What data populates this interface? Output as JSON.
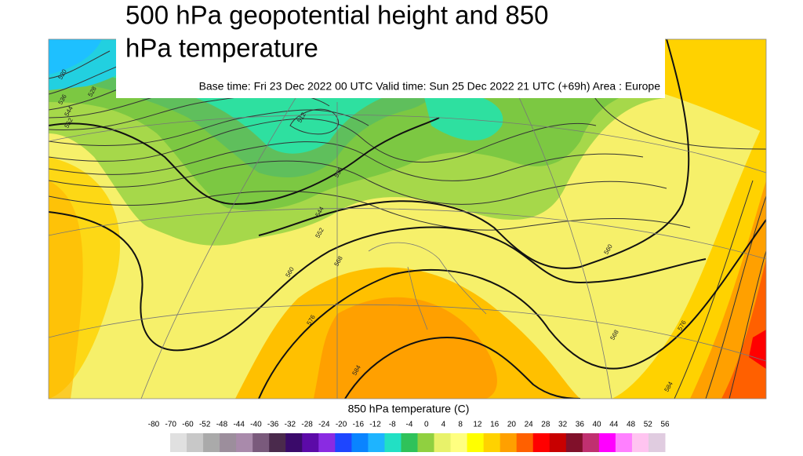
{
  "header": {
    "title_line1": "500 hPa geopotential height and 850",
    "title_line2": "hPa temperature",
    "subtitle": "Base time: Fri 23 Dec 2022 00 UTC Valid time: Sun 25 Dec 2022 21 UTC (+69h) Area : Europe"
  },
  "map": {
    "contour_labels": [
      "520",
      "528",
      "536",
      "544",
      "552",
      "512",
      "536",
      "544",
      "552",
      "560",
      "568",
      "576",
      "584",
      "560",
      "568",
      "576",
      "584"
    ]
  },
  "colorbar": {
    "label": "850 hPa temperature (C)",
    "ticks": [
      -80,
      -70,
      -60,
      -52,
      -48,
      -44,
      -40,
      -36,
      -32,
      -28,
      -24,
      -20,
      -16,
      -12,
      -8,
      -4,
      0,
      4,
      8,
      12,
      16,
      20,
      24,
      28,
      32,
      36,
      40,
      44,
      48,
      52,
      56
    ],
    "colors": [
      "#e0e0e0",
      "#c8c8c8",
      "#aaaaaa",
      "#9c8e9c",
      "#a98aab",
      "#7a5a7c",
      "#4a2a4c",
      "#3a0a6a",
      "#5c0aa8",
      "#8a2be2",
      "#1e46ff",
      "#0a84ff",
      "#1eb4ff",
      "#22e0c4",
      "#2fc25a",
      "#90d040",
      "#e8f26a",
      "#ffff80",
      "#ffff00",
      "#ffd200",
      "#ffa000",
      "#ff6000",
      "#ff0000",
      "#c80000",
      "#80102a",
      "#c03070",
      "#ff00ff",
      "#ff80ff",
      "#ffc4f0",
      "#e0cce0"
    ]
  }
}
